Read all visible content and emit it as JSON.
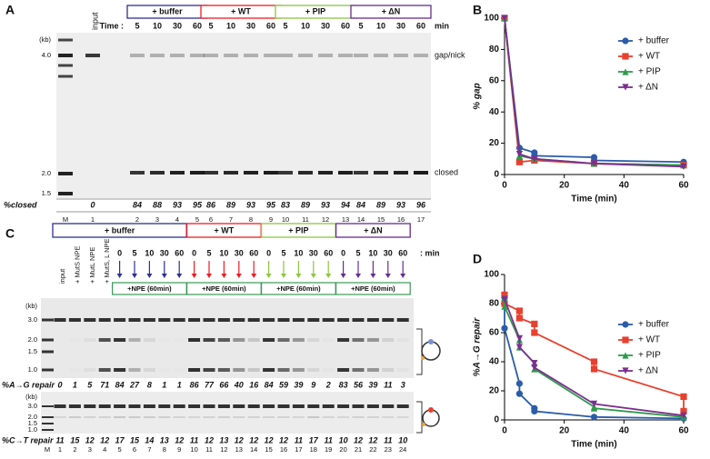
{
  "panel_labels": [
    "A",
    "B",
    "C",
    "D"
  ],
  "gel_a": {
    "time_label": "Time :",
    "unit": "min",
    "input": "input",
    "groups": [
      {
        "name": "+ buffer",
        "color": "#2e3192",
        "times": [
          5,
          10,
          30,
          60
        ]
      },
      {
        "name": "+ WT",
        "color": "#ed1c24",
        "times": [
          5,
          10,
          30,
          60
        ]
      },
      {
        "name": "+ PIP",
        "color": "#8dc63f",
        "times": [
          5,
          10,
          30,
          60
        ]
      },
      {
        "name": "+ ΔN",
        "color": "#662d91",
        "times": [
          5,
          10,
          30,
          60
        ]
      }
    ],
    "size_unit": "(kb)",
    "ladder": [
      "4.0",
      "2.0",
      "1.5"
    ],
    "bands": [
      "gap/nick",
      "closed"
    ],
    "row_label": "%closed",
    "closed": [
      0,
      84,
      88,
      93,
      95,
      86,
      89,
      93,
      95,
      83,
      89,
      93,
      94,
      84,
      89,
      93,
      96
    ],
    "lanes": [
      "M",
      1,
      2,
      3,
      4,
      5,
      6,
      7,
      8,
      9,
      10,
      11,
      12,
      13,
      14,
      15,
      16,
      17
    ]
  },
  "gel_c": {
    "groups": [
      {
        "name": "+ buffer",
        "color": "#2e3192",
        "times": [
          0,
          5,
          10,
          30,
          60
        ]
      },
      {
        "name": "+ WT",
        "color": "#ed1c24",
        "times": [
          0,
          5,
          10,
          30,
          60
        ]
      },
      {
        "name": "+ PIP",
        "color": "#8dc63f",
        "times": [
          0,
          5,
          10,
          30,
          60
        ]
      },
      {
        "name": "+ ΔN",
        "color": "#662d91",
        "times": [
          0,
          5,
          10,
          30,
          60
        ]
      }
    ],
    "pre_lanes": [
      "input",
      "+ MutS NPE",
      "+ MutL NPE",
      "+ MutS, L NPE"
    ],
    "unit": ": min",
    "npe_label": "+NPE (60min)",
    "size_unit": "(kb)",
    "ladder": [
      "3.0",
      "2.0",
      "1.5",
      "1.0"
    ],
    "ag_label": "%A→G repair",
    "ag": [
      0,
      1,
      5,
      71,
      84,
      27,
      8,
      1,
      1,
      86,
      77,
      66,
      40,
      16,
      84,
      59,
      39,
      9,
      2,
      83,
      56,
      39,
      11,
      3
    ],
    "ct_label": "%C→T repair",
    "ct": [
      11,
      15,
      12,
      12,
      17,
      15,
      14,
      13,
      12,
      11,
      12,
      13,
      12,
      12,
      12,
      12,
      11,
      17,
      11,
      10,
      12,
      12,
      11,
      10
    ],
    "lanes": [
      "M",
      1,
      2,
      3,
      4,
      5,
      6,
      7,
      8,
      9,
      10,
      11,
      12,
      13,
      14,
      15,
      16,
      17,
      18,
      19,
      20,
      21,
      22,
      23,
      24
    ]
  },
  "chart_data": [
    {
      "type": "scatter",
      "lines": true,
      "y_label": "% gap",
      "x_label": "Time (min)",
      "xlim": [
        0,
        60
      ],
      "xticks": [
        0,
        20,
        40,
        60
      ],
      "ylim": [
        0,
        100
      ],
      "yticks": [
        0,
        20,
        40,
        60,
        80,
        100
      ],
      "legend": "upper right",
      "series": [
        {
          "name": "+ buffer",
          "color": "#2b5ca8",
          "marker": "circle",
          "x": [
            0,
            5,
            10,
            10,
            30,
            30,
            60,
            60
          ],
          "values": [
            100,
            17,
            14,
            12,
            11,
            9,
            8,
            6
          ]
        },
        {
          "name": "+ WT",
          "color": "#e8402f",
          "marker": "square",
          "x": [
            0,
            5,
            10,
            30,
            60
          ],
          "values": [
            100,
            8,
            9,
            7,
            6
          ]
        },
        {
          "name": "+ PIP",
          "color": "#2e9b4b",
          "marker": "triangle-up",
          "x": [
            0,
            5,
            10,
            30,
            60
          ],
          "values": [
            100,
            12,
            10,
            7,
            6
          ]
        },
        {
          "name": "+ ΔN",
          "color": "#7b2f8f",
          "marker": "triangle-down",
          "x": [
            0,
            5,
            10,
            30,
            60
          ],
          "values": [
            100,
            13,
            10,
            7,
            5
          ]
        }
      ]
    },
    {
      "type": "scatter",
      "lines": true,
      "y_label": "%A→G repair",
      "x_label": "Time (min)",
      "xlim": [
        0,
        60
      ],
      "xticks": [
        0,
        20,
        40,
        60
      ],
      "ylim": [
        0,
        100
      ],
      "yticks": [
        0,
        20,
        40,
        60,
        80,
        100
      ],
      "legend": "upper right",
      "series": [
        {
          "name": "+ buffer",
          "color": "#2b5ca8",
          "marker": "circle",
          "x": [
            0,
            0,
            5,
            5,
            10,
            10,
            30,
            60
          ],
          "values": [
            84,
            63,
            25,
            18,
            8,
            6,
            2,
            1
          ]
        },
        {
          "name": "+ WT",
          "color": "#e8402f",
          "marker": "square",
          "x": [
            0,
            0,
            5,
            5,
            10,
            10,
            30,
            30,
            60,
            60
          ],
          "values": [
            86,
            80,
            75,
            70,
            66,
            60,
            40,
            35,
            16,
            6
          ]
        },
        {
          "name": "+ PIP",
          "color": "#2e9b4b",
          "marker": "triangle-up",
          "x": [
            0,
            0,
            5,
            5,
            10,
            10,
            30,
            30,
            60
          ],
          "values": [
            84,
            78,
            55,
            50,
            39,
            35,
            9,
            8,
            2
          ]
        },
        {
          "name": "+ ΔN",
          "color": "#7b2f8f",
          "marker": "triangle-down",
          "x": [
            0,
            5,
            5,
            10,
            10,
            30,
            60
          ],
          "values": [
            83,
            56,
            50,
            39,
            36,
            11,
            3
          ]
        }
      ]
    }
  ]
}
